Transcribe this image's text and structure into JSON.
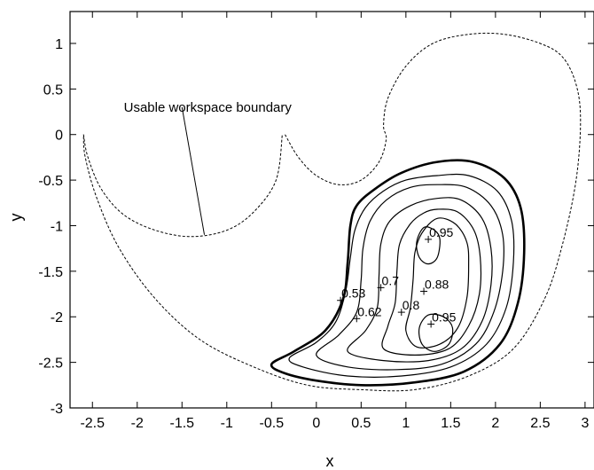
{
  "chart_data": {
    "type": "line",
    "title": "",
    "xlabel": "x",
    "ylabel": "y",
    "xlim": [
      -2.75,
      3.1
    ],
    "ylim": [
      -3,
      1.35
    ],
    "xticks": [
      "-2.5",
      "-2",
      "-1.5",
      "-1",
      "-0.5",
      "0",
      "0.5",
      "1",
      "1.5",
      "2",
      "2.5",
      "3"
    ],
    "yticks": [
      "1",
      "0.5",
      "0",
      "-0.5",
      "-1",
      "-1.5",
      "-2",
      "-2.5",
      "-3"
    ],
    "grid": false,
    "annotation": {
      "text": "Usable workspace boundary",
      "text_at": [
        -2.15,
        0.25
      ],
      "pointer": [
        [
          -1.5,
          0.3
        ],
        [
          -1.25,
          -1.1
        ]
      ]
    },
    "series": [
      {
        "style": "dashed",
        "closed": false,
        "points": [
          [
            -2.6,
            0
          ],
          [
            -2.55,
            -0.25
          ],
          [
            -2.4,
            -0.6
          ],
          [
            -2.15,
            -0.88
          ],
          [
            -1.8,
            -1.05
          ],
          [
            -1.4,
            -1.12
          ],
          [
            -1.0,
            -1.05
          ],
          [
            -0.7,
            -0.85
          ],
          [
            -0.45,
            -0.5
          ],
          [
            -0.38,
            0
          ]
        ]
      },
      {
        "style": "dashed",
        "closed": false,
        "points": [
          [
            -0.35,
            0
          ],
          [
            -0.2,
            -0.25
          ],
          [
            0,
            -0.45
          ],
          [
            0.25,
            -0.55
          ],
          [
            0.5,
            -0.5
          ],
          [
            0.7,
            -0.3
          ],
          [
            0.78,
            -0.05
          ],
          [
            0.75,
            0.1
          ],
          [
            0.8,
            0.4
          ],
          [
            1.0,
            0.75
          ],
          [
            1.3,
            1.0
          ],
          [
            1.7,
            1.1
          ],
          [
            2.1,
            1.1
          ],
          [
            2.5,
            1.0
          ],
          [
            2.75,
            0.85
          ],
          [
            2.9,
            0.55
          ],
          [
            2.95,
            0.15
          ],
          [
            2.9,
            -0.5
          ],
          [
            2.75,
            -1.2
          ],
          [
            2.55,
            -1.8
          ],
          [
            2.2,
            -2.35
          ],
          [
            1.7,
            -2.65
          ],
          [
            1.1,
            -2.8
          ],
          [
            0.5,
            -2.8
          ],
          [
            -0.1,
            -2.75
          ],
          [
            -0.7,
            -2.55
          ],
          [
            -1.3,
            -2.25
          ],
          [
            -1.8,
            -1.8
          ],
          [
            -2.2,
            -1.25
          ],
          [
            -2.45,
            -0.7
          ],
          [
            -2.58,
            -0.25
          ],
          [
            -2.6,
            0
          ]
        ]
      },
      {
        "style": "bold",
        "closed": true,
        "points": [
          [
            1.35,
            -0.3
          ],
          [
            1.75,
            -0.3
          ],
          [
            2.1,
            -0.48
          ],
          [
            2.28,
            -0.8
          ],
          [
            2.32,
            -1.3
          ],
          [
            2.25,
            -1.85
          ],
          [
            2.05,
            -2.3
          ],
          [
            1.65,
            -2.6
          ],
          [
            1.1,
            -2.72
          ],
          [
            0.5,
            -2.75
          ],
          [
            0,
            -2.7
          ],
          [
            -0.35,
            -2.62
          ],
          [
            -0.5,
            -2.52
          ],
          [
            -0.25,
            -2.38
          ],
          [
            0.1,
            -2.15
          ],
          [
            0.3,
            -1.8
          ],
          [
            0.35,
            -1.4
          ],
          [
            0.38,
            -1.0
          ],
          [
            0.45,
            -0.78
          ],
          [
            0.65,
            -0.6
          ],
          [
            0.95,
            -0.42
          ]
        ]
      },
      {
        "style": "thin",
        "closed": true,
        "points": [
          [
            1.35,
            -0.45
          ],
          [
            1.7,
            -0.45
          ],
          [
            2.02,
            -0.62
          ],
          [
            2.18,
            -0.95
          ],
          [
            2.2,
            -1.4
          ],
          [
            2.12,
            -1.9
          ],
          [
            1.9,
            -2.3
          ],
          [
            1.5,
            -2.55
          ],
          [
            0.95,
            -2.65
          ],
          [
            0.35,
            -2.65
          ],
          [
            -0.15,
            -2.55
          ],
          [
            -0.3,
            -2.45
          ],
          [
            0,
            -2.28
          ],
          [
            0.22,
            -2.05
          ],
          [
            0.33,
            -1.7
          ],
          [
            0.38,
            -1.35
          ],
          [
            0.43,
            -1.05
          ],
          [
            0.55,
            -0.8
          ],
          [
            0.75,
            -0.62
          ],
          [
            1.0,
            -0.5
          ]
        ]
      },
      {
        "style": "thin",
        "closed": true,
        "points": [
          [
            1.35,
            -0.55
          ],
          [
            1.68,
            -0.58
          ],
          [
            1.95,
            -0.78
          ],
          [
            2.08,
            -1.1
          ],
          [
            2.08,
            -1.5
          ],
          [
            1.98,
            -1.95
          ],
          [
            1.78,
            -2.3
          ],
          [
            1.4,
            -2.52
          ],
          [
            0.9,
            -2.58
          ],
          [
            0.35,
            -2.55
          ],
          [
            0,
            -2.42
          ],
          [
            0.25,
            -2.2
          ],
          [
            0.45,
            -1.95
          ],
          [
            0.5,
            -1.6
          ],
          [
            0.52,
            -1.25
          ],
          [
            0.6,
            -0.95
          ],
          [
            0.78,
            -0.72
          ],
          [
            1.05,
            -0.58
          ]
        ]
      },
      {
        "style": "thin",
        "closed": true,
        "points": [
          [
            1.35,
            -0.7
          ],
          [
            1.62,
            -0.72
          ],
          [
            1.85,
            -0.92
          ],
          [
            1.95,
            -1.25
          ],
          [
            1.95,
            -1.65
          ],
          [
            1.85,
            -2.05
          ],
          [
            1.62,
            -2.35
          ],
          [
            1.25,
            -2.48
          ],
          [
            0.75,
            -2.48
          ],
          [
            0.35,
            -2.38
          ],
          [
            0.55,
            -2.15
          ],
          [
            0.68,
            -1.9
          ],
          [
            0.7,
            -1.55
          ],
          [
            0.72,
            -1.2
          ],
          [
            0.82,
            -0.95
          ],
          [
            1.05,
            -0.78
          ]
        ]
      },
      {
        "style": "thin",
        "closed": true,
        "points": [
          [
            1.35,
            -0.82
          ],
          [
            1.58,
            -0.85
          ],
          [
            1.76,
            -1.05
          ],
          [
            1.83,
            -1.35
          ],
          [
            1.82,
            -1.75
          ],
          [
            1.7,
            -2.1
          ],
          [
            1.48,
            -2.35
          ],
          [
            1.1,
            -2.42
          ],
          [
            0.75,
            -2.35
          ],
          [
            0.8,
            -2.1
          ],
          [
            0.88,
            -1.85
          ],
          [
            0.9,
            -1.5
          ],
          [
            0.93,
            -1.2
          ],
          [
            1.05,
            -0.98
          ],
          [
            1.2,
            -0.86
          ]
        ]
      },
      {
        "style": "thin",
        "closed": true,
        "points": [
          [
            1.35,
            -0.92
          ],
          [
            1.55,
            -0.98
          ],
          [
            1.68,
            -1.18
          ],
          [
            1.7,
            -1.45
          ],
          [
            1.68,
            -1.8
          ],
          [
            1.58,
            -2.12
          ],
          [
            1.38,
            -2.3
          ],
          [
            1.12,
            -2.33
          ],
          [
            1.0,
            -2.15
          ],
          [
            1.05,
            -1.9
          ],
          [
            1.08,
            -1.6
          ],
          [
            1.1,
            -1.3
          ],
          [
            1.18,
            -1.08
          ]
        ]
      },
      {
        "style": "thin",
        "closed": true,
        "points": [
          [
            1.2,
            -1.02
          ],
          [
            1.32,
            -1.05
          ],
          [
            1.38,
            -1.15
          ],
          [
            1.35,
            -1.35
          ],
          [
            1.25,
            -1.42
          ],
          [
            1.15,
            -1.35
          ],
          [
            1.12,
            -1.18
          ]
        ]
      },
      {
        "style": "thin",
        "closed": true,
        "points": [
          [
            1.25,
            -1.98
          ],
          [
            1.42,
            -2.0
          ],
          [
            1.52,
            -2.12
          ],
          [
            1.48,
            -2.3
          ],
          [
            1.32,
            -2.38
          ],
          [
            1.18,
            -2.3
          ],
          [
            1.15,
            -2.12
          ]
        ]
      }
    ],
    "contour_labels": [
      {
        "text": "0.95",
        "x": 1.25,
        "y": -1.15
      },
      {
        "text": "0.88",
        "x": 1.2,
        "y": -1.72
      },
      {
        "text": "0.7",
        "x": 0.72,
        "y": -1.68
      },
      {
        "text": "0.8",
        "x": 0.95,
        "y": -1.95
      },
      {
        "text": "0.95",
        "x": 1.28,
        "y": -2.08
      },
      {
        "text": "0.53",
        "x": 0.27,
        "y": -1.82
      },
      {
        "text": "0.62",
        "x": 0.45,
        "y": -2.02
      }
    ]
  }
}
